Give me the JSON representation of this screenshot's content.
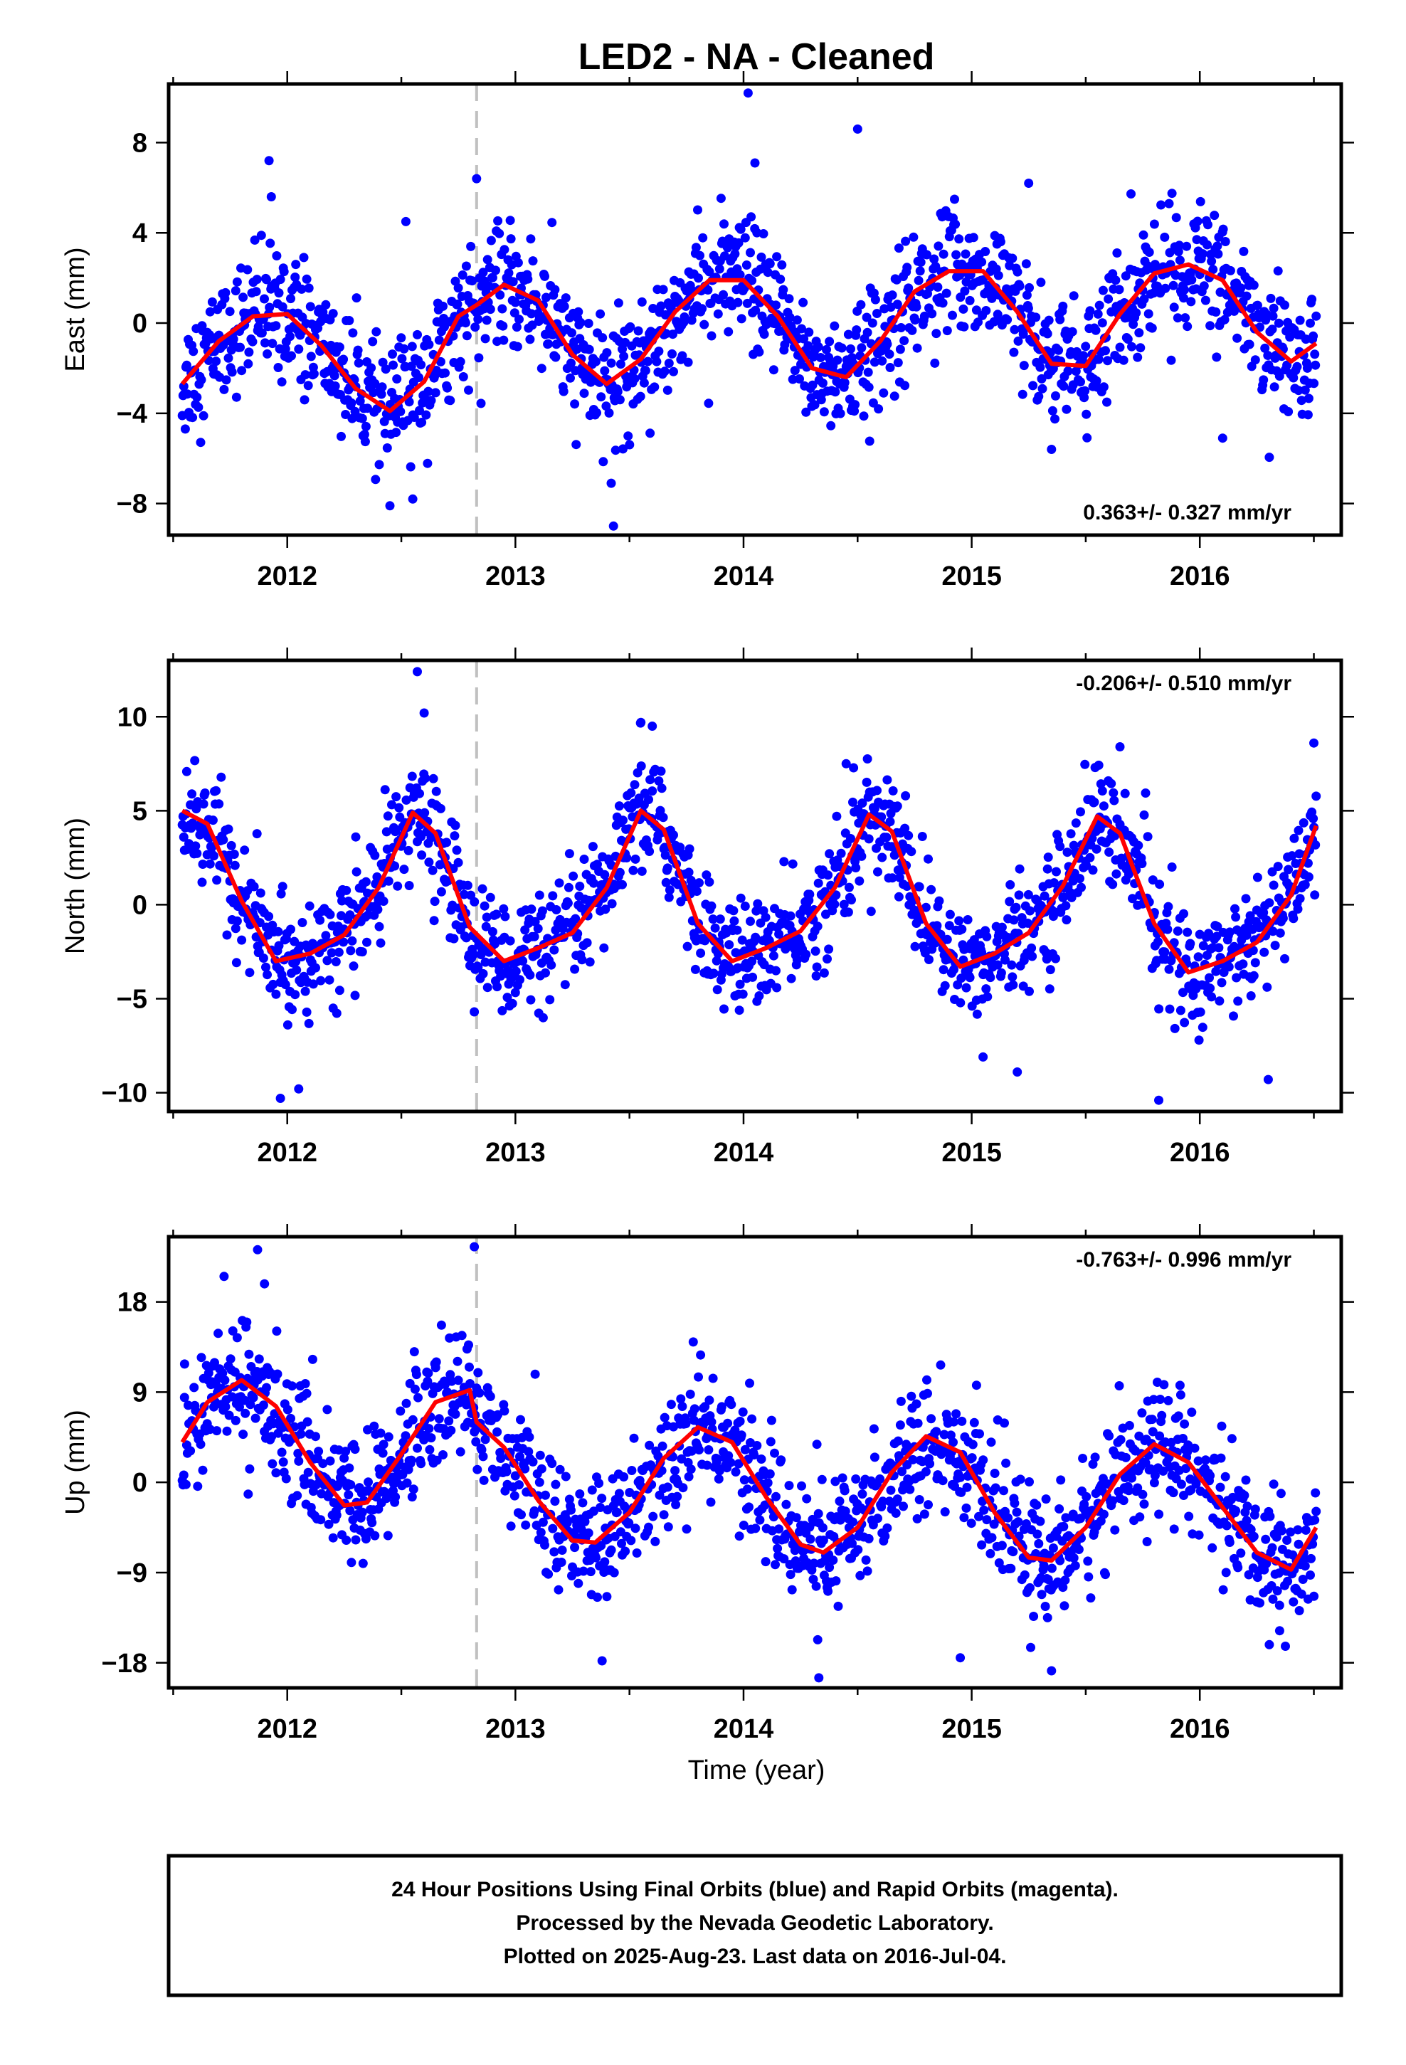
{
  "chart_data": {
    "title": "LED2  - NA - Cleaned",
    "type": "scatter",
    "xlabel": "Time (year)",
    "xlim": [
      2011.48,
      2016.62
    ],
    "x_ticks": [
      2012,
      2013,
      2014,
      2015,
      2016
    ],
    "x_tick_labels": [
      "2012",
      "2013",
      "2014",
      "2015",
      "2016"
    ],
    "x_minor_step": 0.5,
    "x_range_data": [
      2011.54,
      2016.51
    ],
    "event_marker_x": 2012.83,
    "colors": {
      "final_orbits": "#0000ff",
      "model": "#ff0000",
      "event_line": "#c0c0c0"
    },
    "panels": [
      {
        "ylabel": "East (mm)",
        "ylim": [
          -9.4,
          10.6
        ],
        "y_ticks": [
          -8,
          -4,
          0,
          4,
          8
        ],
        "y_tick_labels": [
          "−8",
          "−4",
          "0",
          "4",
          "8"
        ],
        "rate_text": "0.363+/- 0.327 mm/yr",
        "rate_position": "bottom-right",
        "model": {
          "x": [
            2011.54,
            2011.7,
            2011.85,
            2012.0,
            2012.15,
            2012.3,
            2012.45,
            2012.6,
            2012.75,
            2012.83,
            2012.95,
            2013.1,
            2013.25,
            2013.4,
            2013.55,
            2013.7,
            2013.85,
            2014.0,
            2014.15,
            2014.3,
            2014.45,
            2014.6,
            2014.75,
            2014.9,
            2015.05,
            2015.2,
            2015.35,
            2015.5,
            2015.65,
            2015.8,
            2015.95,
            2016.1,
            2016.25,
            2016.4,
            2016.51
          ],
          "y": [
            -2.7,
            -0.8,
            0.3,
            0.4,
            -1.0,
            -2.9,
            -3.9,
            -2.6,
            0.3,
            0.8,
            1.7,
            1.0,
            -1.4,
            -2.7,
            -1.6,
            0.5,
            1.9,
            1.9,
            0.3,
            -2.0,
            -2.4,
            -0.8,
            1.4,
            2.3,
            2.3,
            0.5,
            -1.8,
            -1.9,
            0.4,
            2.2,
            2.6,
            1.9,
            -0.4,
            -1.7,
            -0.9
          ]
        },
        "noise_sd": 1.35,
        "outliers": [
          [
            2011.92,
            7.2
          ],
          [
            2011.93,
            5.6
          ],
          [
            2012.83,
            6.4
          ],
          [
            2012.52,
            4.5
          ],
          [
            2012.45,
            -8.1
          ],
          [
            2012.55,
            -7.8
          ],
          [
            2013.43,
            -9.0
          ],
          [
            2013.42,
            -7.1
          ],
          [
            2014.02,
            10.2
          ],
          [
            2014.05,
            7.1
          ],
          [
            2014.5,
            8.6
          ],
          [
            2015.25,
            6.2
          ],
          [
            2015.35,
            -5.6
          ],
          [
            2016.1,
            -5.1
          ]
        ]
      },
      {
        "ylabel": "North (mm)",
        "ylim": [
          -11.0,
          13.0
        ],
        "y_ticks": [
          -10,
          -5,
          0,
          5,
          10
        ],
        "y_tick_labels": [
          "−10",
          "−5",
          "0",
          "5",
          "10"
        ],
        "rate_text": "-0.206+/- 0.510 mm/yr",
        "rate_position": "top-right",
        "model": {
          "x": [
            2011.54,
            2011.65,
            2011.8,
            2011.95,
            2012.1,
            2012.25,
            2012.4,
            2012.55,
            2012.65,
            2012.8,
            2012.95,
            2013.1,
            2013.25,
            2013.4,
            2013.55,
            2013.65,
            2013.8,
            2013.95,
            2014.1,
            2014.25,
            2014.4,
            2014.55,
            2014.65,
            2014.8,
            2014.95,
            2015.1,
            2015.25,
            2015.4,
            2015.55,
            2015.65,
            2015.8,
            2015.95,
            2016.1,
            2016.25,
            2016.4,
            2016.51
          ],
          "y": [
            5.0,
            4.3,
            0.2,
            -3.0,
            -2.6,
            -1.6,
            0.9,
            4.9,
            3.8,
            -1.2,
            -3.0,
            -2.3,
            -1.5,
            0.9,
            5.0,
            4.0,
            -1.0,
            -3.0,
            -2.3,
            -1.4,
            0.9,
            4.8,
            3.9,
            -1.0,
            -3.3,
            -2.6,
            -1.5,
            1.0,
            4.7,
            3.8,
            -1.0,
            -3.6,
            -3.0,
            -2.0,
            0.5,
            4.2
          ]
        },
        "noise_sd": 1.5,
        "outliers": [
          [
            2012.57,
            12.4
          ],
          [
            2012.6,
            10.2
          ],
          [
            2011.97,
            -10.3
          ],
          [
            2012.05,
            -9.8
          ],
          [
            2013.55,
            9.7
          ],
          [
            2013.6,
            9.5
          ],
          [
            2014.45,
            7.5
          ],
          [
            2015.05,
            -8.1
          ],
          [
            2015.2,
            -8.9
          ],
          [
            2015.65,
            8.4
          ],
          [
            2015.82,
            -10.4
          ],
          [
            2016.3,
            -9.3
          ],
          [
            2016.5,
            8.6
          ],
          [
            2012.82,
            -5.7
          ]
        ]
      },
      {
        "ylabel": "Up (mm)",
        "ylim": [
          -20.5,
          24.5
        ],
        "y_ticks": [
          -18,
          -9,
          0,
          9,
          18
        ],
        "y_tick_labels": [
          "−18",
          "−9",
          "0",
          "9",
          "18"
        ],
        "rate_text": "-0.763+/- 0.996 mm/yr",
        "rate_position": "top-right",
        "model": {
          "x": [
            2011.54,
            2011.65,
            2011.8,
            2011.95,
            2012.1,
            2012.25,
            2012.35,
            2012.5,
            2012.65,
            2012.8,
            2012.83,
            2012.95,
            2013.1,
            2013.25,
            2013.35,
            2013.5,
            2013.65,
            2013.8,
            2013.95,
            2014.1,
            2014.25,
            2014.35,
            2014.5,
            2014.65,
            2014.8,
            2014.95,
            2015.1,
            2015.25,
            2015.35,
            2015.5,
            2015.65,
            2015.8,
            2015.95,
            2016.1,
            2016.25,
            2016.4,
            2016.51
          ],
          "y": [
            4.0,
            8.0,
            10.2,
            7.6,
            2.0,
            -2.3,
            -2.0,
            2.8,
            8.0,
            9.2,
            6.0,
            3.5,
            -1.8,
            -5.8,
            -6.0,
            -3.0,
            2.4,
            5.5,
            4.0,
            -1.5,
            -6.2,
            -7.0,
            -4.5,
            1.0,
            4.6,
            3.0,
            -3.0,
            -7.5,
            -7.8,
            -4.5,
            0.8,
            3.8,
            2.0,
            -2.5,
            -7.0,
            -8.7,
            -4.5
          ]
        },
        "noise_sd": 3.2,
        "outliers": [
          [
            2011.87,
            23.2
          ],
          [
            2011.9,
            19.8
          ],
          [
            2012.82,
            23.5
          ],
          [
            2013.38,
            -17.8
          ],
          [
            2014.33,
            -19.5
          ],
          [
            2014.95,
            -17.5
          ],
          [
            2015.35,
            -18.8
          ],
          [
            2016.35,
            -14.8
          ],
          [
            2011.55,
            11.8
          ]
        ]
      }
    ]
  },
  "footer": {
    "line1": "24 Hour Positions Using Final Orbits (blue) and Rapid Orbits (magenta).",
    "line2": "Processed by the Nevada Geodetic Laboratory.",
    "line3": "Plotted on 2025-Aug-23. Last data on 2016-Jul-04."
  }
}
